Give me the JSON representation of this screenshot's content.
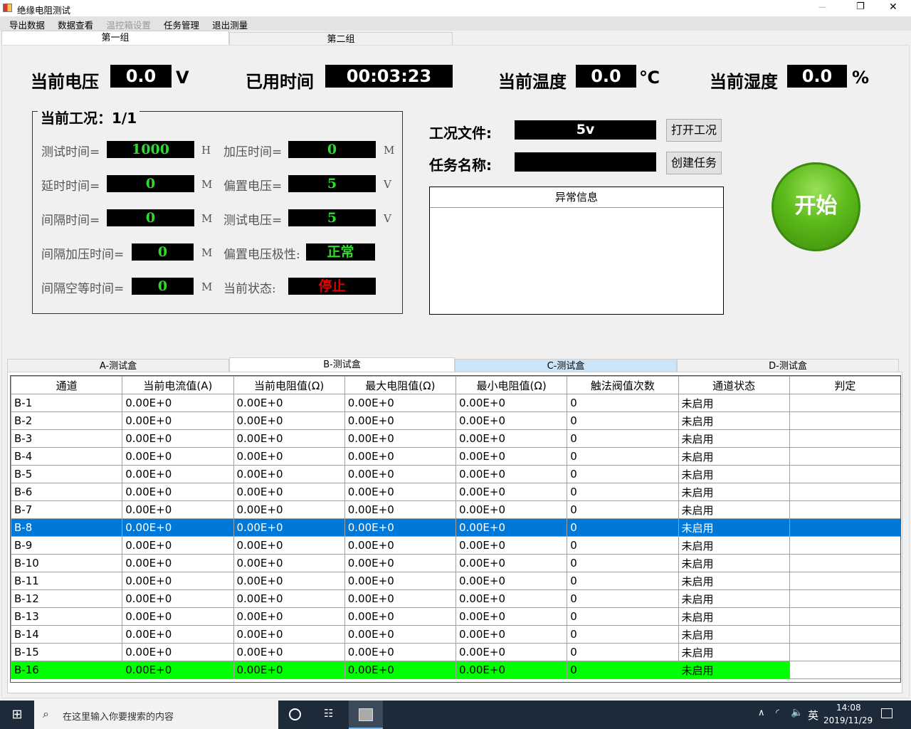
{
  "window": {
    "title": "绝缘电阻测试",
    "controls": [
      "—",
      "❐",
      "✕"
    ]
  },
  "menu": [
    "导出数据",
    "数据查看",
    "温控箱设置",
    "任务管理",
    "退出测量"
  ],
  "group_tabs": [
    "第一组",
    "第二组"
  ],
  "readouts": {
    "voltage": {
      "label": "当前电压",
      "value": "0.0",
      "unit": "V"
    },
    "elapsed": {
      "label": "已用时间",
      "value": "00:03:23"
    },
    "temperature": {
      "label": "当前温度",
      "value": "0.0",
      "unit": "℃"
    },
    "humidity": {
      "label": "当前湿度",
      "value": "0.0",
      "unit": "%"
    }
  },
  "condition": {
    "title": "当前工况：1/1",
    "left": [
      {
        "label": "测试时间=",
        "value": "1000",
        "unit": "H"
      },
      {
        "label": "延时时间=",
        "value": "0",
        "unit": "M"
      },
      {
        "label": "间隔时间=",
        "value": "0",
        "unit": "M"
      },
      {
        "label": "间隔加压时间=",
        "value": "0",
        "unit": "M"
      },
      {
        "label": "间隔空等时间=",
        "value": "0",
        "unit": "M"
      }
    ],
    "right": [
      {
        "label": "加压时间=",
        "value": "0",
        "unit": "M"
      },
      {
        "label": "偏置电压=",
        "value": "5",
        "unit": "V"
      },
      {
        "label": "测试电压=",
        "value": "5",
        "unit": "V"
      },
      {
        "label": "偏置电压极性:",
        "value": "正常",
        "unit": ""
      },
      {
        "label": "当前状态:",
        "value": "停止",
        "unit": ""
      }
    ]
  },
  "file": {
    "label": "工况文件:",
    "value": "5v",
    "button": "打开工况"
  },
  "task": {
    "label": "任务名称:",
    "value": "",
    "button": "创建任务"
  },
  "error_panel": {
    "title": "异常信息"
  },
  "start_button": "开始",
  "box_tabs": [
    "A-测试盒",
    "B-测试盒",
    "C-测试盒",
    "D-测试盒"
  ],
  "active_box_tab": 1,
  "table": {
    "columns": [
      "通道",
      "当前电流值(A)",
      "当前电阻值(Ω)",
      "最大电阻值(Ω)",
      "最小电阻值(Ω)",
      "触法阀值次数",
      "通道状态",
      "判定"
    ],
    "rows": [
      [
        "B-1",
        "0.00E+0",
        "0.00E+0",
        "0.00E+0",
        "0.00E+0",
        "0",
        "未启用",
        ""
      ],
      [
        "B-2",
        "0.00E+0",
        "0.00E+0",
        "0.00E+0",
        "0.00E+0",
        "0",
        "未启用",
        ""
      ],
      [
        "B-3",
        "0.00E+0",
        "0.00E+0",
        "0.00E+0",
        "0.00E+0",
        "0",
        "未启用",
        ""
      ],
      [
        "B-4",
        "0.00E+0",
        "0.00E+0",
        "0.00E+0",
        "0.00E+0",
        "0",
        "未启用",
        ""
      ],
      [
        "B-5",
        "0.00E+0",
        "0.00E+0",
        "0.00E+0",
        "0.00E+0",
        "0",
        "未启用",
        ""
      ],
      [
        "B-6",
        "0.00E+0",
        "0.00E+0",
        "0.00E+0",
        "0.00E+0",
        "0",
        "未启用",
        ""
      ],
      [
        "B-7",
        "0.00E+0",
        "0.00E+0",
        "0.00E+0",
        "0.00E+0",
        "0",
        "未启用",
        ""
      ],
      [
        "B-8",
        "0.00E+0",
        "0.00E+0",
        "0.00E+0",
        "0.00E+0",
        "0",
        "未启用",
        ""
      ],
      [
        "B-9",
        "0.00E+0",
        "0.00E+0",
        "0.00E+0",
        "0.00E+0",
        "0",
        "未启用",
        ""
      ],
      [
        "B-10",
        "0.00E+0",
        "0.00E+0",
        "0.00E+0",
        "0.00E+0",
        "0",
        "未启用",
        ""
      ],
      [
        "B-11",
        "0.00E+0",
        "0.00E+0",
        "0.00E+0",
        "0.00E+0",
        "0",
        "未启用",
        ""
      ],
      [
        "B-12",
        "0.00E+0",
        "0.00E+0",
        "0.00E+0",
        "0.00E+0",
        "0",
        "未启用",
        ""
      ],
      [
        "B-13",
        "0.00E+0",
        "0.00E+0",
        "0.00E+0",
        "0.00E+0",
        "0",
        "未启用",
        ""
      ],
      [
        "B-14",
        "0.00E+0",
        "0.00E+0",
        "0.00E+0",
        "0.00E+0",
        "0",
        "未启用",
        ""
      ],
      [
        "B-15",
        "0.00E+0",
        "0.00E+0",
        "0.00E+0",
        "0.00E+0",
        "0",
        "未启用",
        ""
      ],
      [
        "B-16",
        "0.00E+0",
        "0.00E+0",
        "0.00E+0",
        "0.00E+0",
        "0",
        "未启用",
        ""
      ]
    ],
    "selected_row": "B-8",
    "highlight_row": "B-16",
    "colors": {
      "selected": "#0078d7",
      "highlight": "#00ff00"
    }
  },
  "taskbar": {
    "search_placeholder": "在这里输入你要搜索的内容",
    "ime": "英",
    "time": "14:08",
    "date": "2019/11/29"
  }
}
